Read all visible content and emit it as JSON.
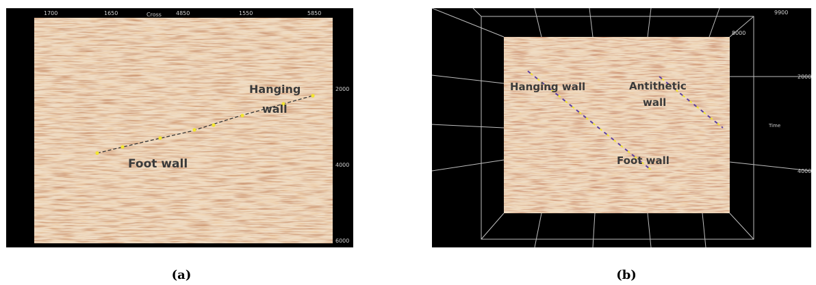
{
  "panel_a": {
    "top_ticks": [
      "1700",
      "1650",
      "Cross",
      "4850",
      "1550",
      "5850"
    ],
    "right_ticks": [
      "2000",
      "4000",
      "6000"
    ],
    "labels": {
      "hanging_line1": "Hanging",
      "hanging_line2": "wall",
      "foot": "Foot wall"
    }
  },
  "panel_b": {
    "top_ticks": [
      "9900",
      "8000"
    ],
    "right_ticks": [
      "2000",
      "4000"
    ],
    "axis_label": "Time",
    "labels": {
      "hanging": "Hanging wall",
      "antithetic_line1": "Antithetic",
      "antithetic_line2": "wall",
      "foot": "Foot wall"
    }
  },
  "captions": {
    "a": "(a)",
    "b": "(b)"
  },
  "colors": {
    "seismic_background": "#efdcc4",
    "fault_line_a": "#333333",
    "fault_line_b": "#5a3fa0",
    "marker": "#f2e531"
  }
}
